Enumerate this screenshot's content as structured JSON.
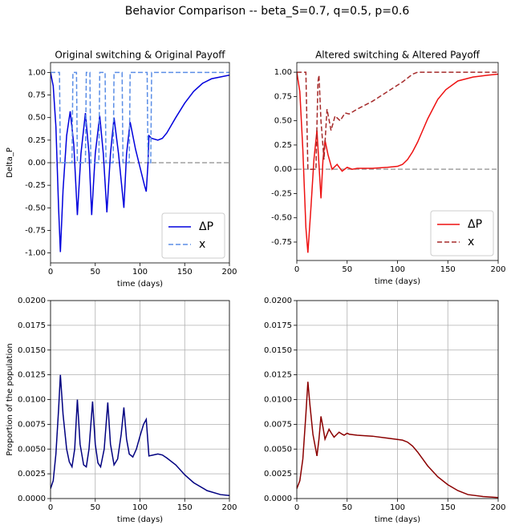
{
  "title": "Behavior Comparison -- beta_S=0.7, q=0.5, p=0.6",
  "chart_data": [
    {
      "type": "line",
      "title": "Original switching & Original Payoff",
      "xlabel": "time (days)",
      "ylabel": "Delta_P",
      "xlim": [
        0,
        200
      ],
      "xticks": [
        0,
        50,
        100,
        150,
        200
      ],
      "ylim": [
        -1.11,
        1.11
      ],
      "yticks": [
        {
          "value": -1,
          "label": "-1.00"
        },
        {
          "value": -0.75,
          "label": "-0.75"
        },
        {
          "value": -0.5,
          "label": "-0.50"
        },
        {
          "value": -0.25,
          "label": "-0.25"
        },
        {
          "value": 0,
          "label": "0.00"
        },
        {
          "value": 0.25,
          "label": "0.25"
        },
        {
          "value": 0.5,
          "label": "0.50"
        },
        {
          "value": 0.75,
          "label": "0.75"
        },
        {
          "value": 1,
          "label": "1.00"
        }
      ],
      "grid": false,
      "legend": "lower right",
      "reference_line": 0,
      "series": [
        {
          "name": "ΔP",
          "color": "#0000dd",
          "dash": false,
          "x": [
            0,
            3,
            6,
            9,
            11,
            14,
            18,
            22,
            26,
            30,
            34,
            39,
            43,
            46,
            50,
            55,
            59,
            63,
            67,
            71,
            76,
            82,
            85,
            89,
            95,
            100,
            105,
            107,
            109,
            110,
            113,
            120,
            125,
            130,
            140,
            150,
            160,
            170,
            180,
            190,
            200
          ],
          "values": [
            1.0,
            0.85,
            0.4,
            -0.5,
            -0.99,
            -0.3,
            0.3,
            0.57,
            0.2,
            -0.58,
            0.1,
            0.55,
            0.1,
            -0.58,
            0.1,
            0.52,
            0.1,
            -0.55,
            0.1,
            0.5,
            0.1,
            -0.5,
            0.1,
            0.45,
            0.15,
            -0.05,
            -0.25,
            -0.32,
            0.0,
            0.3,
            0.27,
            0.25,
            0.27,
            0.33,
            0.5,
            0.66,
            0.79,
            0.88,
            0.93,
            0.95,
            0.97
          ]
        },
        {
          "name": "x",
          "color": "#5b8ee6",
          "dash": true,
          "x": [
            0,
            10,
            11,
            24,
            25,
            29,
            30,
            39,
            40,
            44,
            45,
            54,
            55,
            61,
            62,
            70,
            71,
            80,
            81,
            88,
            89,
            108,
            109,
            112,
            113,
            200
          ],
          "values": [
            1,
            1,
            0,
            0,
            1,
            1,
            0,
            0,
            1,
            1,
            0,
            0,
            1,
            1,
            0,
            0,
            1,
            1,
            0,
            0,
            1,
            1,
            0,
            0,
            1,
            1
          ]
        }
      ]
    },
    {
      "type": "line",
      "title": "Altered switching & Altered Payoff",
      "xlabel": "time (days)",
      "xlim": [
        0,
        200
      ],
      "xticks": [
        0,
        50,
        100,
        150,
        200
      ],
      "ylim": [
        -0.94,
        1.1
      ],
      "yticks": [
        {
          "value": -0.75,
          "label": "-0.75"
        },
        {
          "value": -0.5,
          "label": "-0.50"
        },
        {
          "value": -0.25,
          "label": "-0.25"
        },
        {
          "value": 0,
          "label": "0.00"
        },
        {
          "value": 0.25,
          "label": "0.25"
        },
        {
          "value": 0.5,
          "label": "0.50"
        },
        {
          "value": 0.75,
          "label": "0.75"
        },
        {
          "value": 1,
          "label": "1.00"
        }
      ],
      "grid": false,
      "legend": "lower right",
      "reference_line": 0,
      "series": [
        {
          "name": "ΔP",
          "color": "#ee1111",
          "dash": false,
          "x": [
            0,
            3,
            6,
            9,
            11,
            14,
            17,
            20,
            22,
            24,
            26,
            28,
            31,
            35,
            40,
            45,
            50,
            55,
            60,
            75,
            90,
            100,
            105,
            110,
            115,
            120,
            125,
            130,
            135,
            140,
            148,
            160,
            175,
            190,
            200
          ],
          "values": [
            1.0,
            0.8,
            0.2,
            -0.6,
            -0.86,
            -0.4,
            0.1,
            0.4,
            0.05,
            -0.3,
            0.1,
            0.3,
            0.15,
            0.0,
            0.05,
            -0.02,
            0.02,
            0.0,
            0.01,
            0.01,
            0.02,
            0.03,
            0.05,
            0.1,
            0.18,
            0.28,
            0.4,
            0.52,
            0.62,
            0.72,
            0.82,
            0.91,
            0.95,
            0.97,
            0.98
          ]
        },
        {
          "name": "x",
          "color": "#a52a2a",
          "dash": true,
          "x": [
            0,
            9,
            11,
            19,
            21,
            22,
            24,
            27,
            30,
            34,
            38,
            43,
            48,
            52,
            60,
            75,
            90,
            105,
            115,
            120,
            200
          ],
          "values": [
            1,
            1,
            0,
            0,
            0.9,
            0.97,
            0.5,
            0.1,
            0.62,
            0.4,
            0.55,
            0.5,
            0.58,
            0.57,
            0.62,
            0.7,
            0.8,
            0.9,
            0.98,
            1.0,
            1.0
          ]
        }
      ]
    },
    {
      "type": "line",
      "xlabel": "time (days)",
      "ylabel": "Proportion of the population",
      "xlim": [
        0,
        200
      ],
      "xticks": [
        0,
        50,
        100,
        150,
        200
      ],
      "ylim": [
        0,
        0.02
      ],
      "yticks": [
        {
          "value": 0,
          "label": "0.0000"
        },
        {
          "value": 0.0025,
          "label": "0.0025"
        },
        {
          "value": 0.005,
          "label": "0.0050"
        },
        {
          "value": 0.0075,
          "label": "0.0075"
        },
        {
          "value": 0.01,
          "label": "0.0100"
        },
        {
          "value": 0.0125,
          "label": "0.0125"
        },
        {
          "value": 0.015,
          "label": "0.0150"
        },
        {
          "value": 0.0175,
          "label": "0.0175"
        },
        {
          "value": 0.02,
          "label": "0.0200"
        }
      ],
      "grid": true,
      "series": [
        {
          "color": "#000080",
          "dash": false,
          "x": [
            0,
            3,
            6,
            9,
            11,
            14,
            18,
            21,
            24,
            27,
            30,
            33,
            37,
            40,
            43,
            47,
            50,
            53,
            56,
            60,
            64,
            67,
            71,
            75,
            79,
            82,
            85,
            88,
            92,
            96,
            100,
            104,
            107,
            110,
            115,
            120,
            125,
            130,
            140,
            150,
            160,
            175,
            190,
            200
          ],
          "values": [
            0.001,
            0.0018,
            0.0045,
            0.009,
            0.0125,
            0.0085,
            0.005,
            0.0037,
            0.0032,
            0.005,
            0.01,
            0.0055,
            0.0034,
            0.0032,
            0.005,
            0.0098,
            0.0055,
            0.0036,
            0.0032,
            0.005,
            0.0097,
            0.0055,
            0.0034,
            0.004,
            0.0065,
            0.0092,
            0.006,
            0.0045,
            0.0042,
            0.005,
            0.0063,
            0.0075,
            0.008,
            0.0043,
            0.0044,
            0.0045,
            0.0044,
            0.0041,
            0.0034,
            0.0024,
            0.0016,
            0.0008,
            0.0004,
            0.0003
          ]
        }
      ]
    },
    {
      "type": "line",
      "xlabel": "time (days)",
      "xlim": [
        0,
        200
      ],
      "xticks": [
        0,
        50,
        100,
        150,
        200
      ],
      "ylim": [
        0,
        0.02
      ],
      "yticks": [
        {
          "value": 0,
          "label": "0.0000"
        },
        {
          "value": 0.0025,
          "label": "0.0025"
        },
        {
          "value": 0.005,
          "label": "0.0050"
        },
        {
          "value": 0.0075,
          "label": "0.0075"
        },
        {
          "value": 0.01,
          "label": "0.0100"
        },
        {
          "value": 0.0125,
          "label": "0.0125"
        },
        {
          "value": 0.015,
          "label": "0.0150"
        },
        {
          "value": 0.0175,
          "label": "0.0175"
        },
        {
          "value": 0.02,
          "label": "0.0200"
        }
      ],
      "grid": true,
      "series": [
        {
          "color": "#8b0000",
          "dash": false,
          "x": [
            0,
            3,
            6,
            9,
            11,
            13,
            16,
            20,
            22,
            24,
            26,
            28,
            32,
            35,
            37,
            40,
            42,
            45,
            47,
            50,
            52,
            60,
            75,
            90,
            105,
            110,
            115,
            120,
            125,
            130,
            140,
            150,
            160,
            170,
            185,
            200
          ],
          "values": [
            0.001,
            0.0018,
            0.004,
            0.0085,
            0.0118,
            0.0095,
            0.0065,
            0.0043,
            0.006,
            0.0083,
            0.0072,
            0.006,
            0.007,
            0.0065,
            0.0062,
            0.0065,
            0.0067,
            0.0065,
            0.0064,
            0.0066,
            0.0065,
            0.0064,
            0.0063,
            0.0061,
            0.0059,
            0.0057,
            0.0053,
            0.0047,
            0.004,
            0.0033,
            0.0022,
            0.0014,
            0.0008,
            0.0004,
            0.0002,
            0.0001
          ]
        }
      ]
    }
  ]
}
